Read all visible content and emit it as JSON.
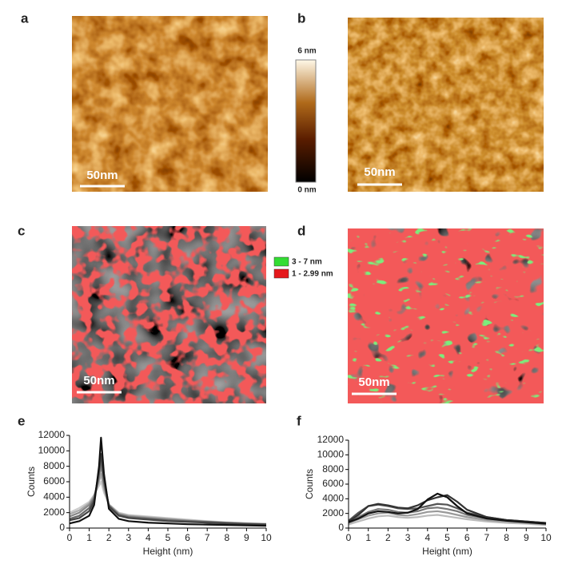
{
  "figure": {
    "panels": {
      "a": {
        "label": "a",
        "scale_bar": "50nm"
      },
      "b": {
        "label": "b",
        "scale_bar": "50nm"
      },
      "c": {
        "label": "c",
        "scale_bar": "50nm"
      },
      "d": {
        "label": "d",
        "scale_bar": "50nm"
      }
    },
    "colorbar": {
      "max": "6 nm",
      "min": "0 nm"
    },
    "legend": [
      {
        "label": "3 - 7 nm",
        "color": "#33dd33"
      },
      {
        "label": "1 - 2.99 nm",
        "color": "#e5181c"
      }
    ]
  },
  "chart_data": [
    {
      "type": "line",
      "title": "e",
      "x_label": "Height (nm)",
      "y_label": "Counts",
      "x": [
        0,
        0.5,
        1,
        1.25,
        1.5,
        1.6,
        1.75,
        2,
        2.5,
        3,
        4,
        5,
        6,
        7,
        8,
        9,
        10
      ],
      "xlim": [
        0,
        10
      ],
      "xticks": [
        0,
        1,
        2,
        3,
        4,
        5,
        6,
        7,
        8,
        9,
        10
      ],
      "ylim": [
        0,
        12000
      ],
      "yticks": [
        0,
        2000,
        4000,
        6000,
        8000,
        10000,
        12000
      ],
      "series": [
        {
          "color": "#cccccc",
          "values": [
            2000,
            2600,
            3400,
            4300,
            5500,
            6000,
            4600,
            3100,
            2000,
            1700,
            1500,
            1300,
            1100,
            900,
            750,
            650,
            550
          ]
        },
        {
          "color": "#aaaaaa",
          "values": [
            1800,
            2300,
            3200,
            4200,
            6000,
            7000,
            5000,
            3000,
            1900,
            1600,
            1400,
            1200,
            1000,
            850,
            700,
            600,
            550
          ]
        },
        {
          "color": "#888888",
          "values": [
            1500,
            2000,
            3000,
            4000,
            6500,
            8200,
            5500,
            3000,
            1800,
            1500,
            1300,
            1100,
            950,
            800,
            700,
            600,
            500
          ]
        },
        {
          "color": "#666666",
          "values": [
            1200,
            1600,
            2600,
            3800,
            7000,
            9000,
            6000,
            2900,
            1700,
            1400,
            1200,
            1000,
            900,
            800,
            650,
            550,
            500
          ]
        },
        {
          "color": "#444444",
          "values": [
            1000,
            1300,
            2200,
            3500,
            7500,
            9600,
            6500,
            2800,
            1600,
            1300,
            1100,
            900,
            800,
            700,
            600,
            500,
            450
          ]
        },
        {
          "color": "#111111",
          "values": [
            600,
            900,
            1600,
            3000,
            8000,
            11700,
            7000,
            2500,
            1200,
            900,
            700,
            600,
            500,
            450,
            400,
            350,
            300
          ]
        }
      ]
    },
    {
      "type": "line",
      "title": "f",
      "x_label": "Height (nm)",
      "y_label": "Counts",
      "x": [
        0,
        0.5,
        1,
        1.5,
        2,
        2.5,
        3,
        3.5,
        4,
        4.5,
        5,
        5.5,
        6,
        7,
        8,
        9,
        10
      ],
      "xlim": [
        0,
        10
      ],
      "xticks": [
        0,
        1,
        2,
        3,
        4,
        5,
        6,
        7,
        8,
        9,
        10
      ],
      "ylim": [
        0,
        12000
      ],
      "yticks": [
        0,
        2000,
        4000,
        6000,
        8000,
        10000,
        12000
      ],
      "series": [
        {
          "color": "#bbbbbb",
          "values": [
            500,
            900,
            1300,
            1600,
            1700,
            1500,
            1400,
            1500,
            1700,
            1800,
            1600,
            1400,
            1200,
            900,
            700,
            600,
            400
          ]
        },
        {
          "color": "#999999",
          "values": [
            700,
            1200,
            1700,
            2000,
            2100,
            1800,
            1700,
            1900,
            2200,
            2300,
            2100,
            1800,
            1500,
            1100,
            900,
            700,
            500
          ]
        },
        {
          "color": "#777777",
          "values": [
            900,
            1500,
            2200,
            2600,
            2500,
            2200,
            2100,
            2300,
            2700,
            2800,
            2600,
            2300,
            1800,
            1300,
            1000,
            800,
            600
          ]
        },
        {
          "color": "#555555",
          "values": [
            1000,
            2100,
            3000,
            3200,
            3000,
            2700,
            2600,
            2700,
            3000,
            3300,
            3200,
            2700,
            2100,
            1500,
            1100,
            900,
            700
          ]
        },
        {
          "color": "#333333",
          "values": [
            900,
            1800,
            3000,
            3300,
            3100,
            2800,
            2700,
            3100,
            3800,
            4200,
            4500,
            3600,
            2500,
            1500,
            1100,
            900,
            700
          ]
        },
        {
          "color": "#111111",
          "values": [
            800,
            1300,
            2000,
            2300,
            2200,
            2000,
            2100,
            2600,
            3900,
            4700,
            4200,
            3000,
            2000,
            1300,
            1000,
            800,
            600
          ]
        }
      ]
    }
  ]
}
